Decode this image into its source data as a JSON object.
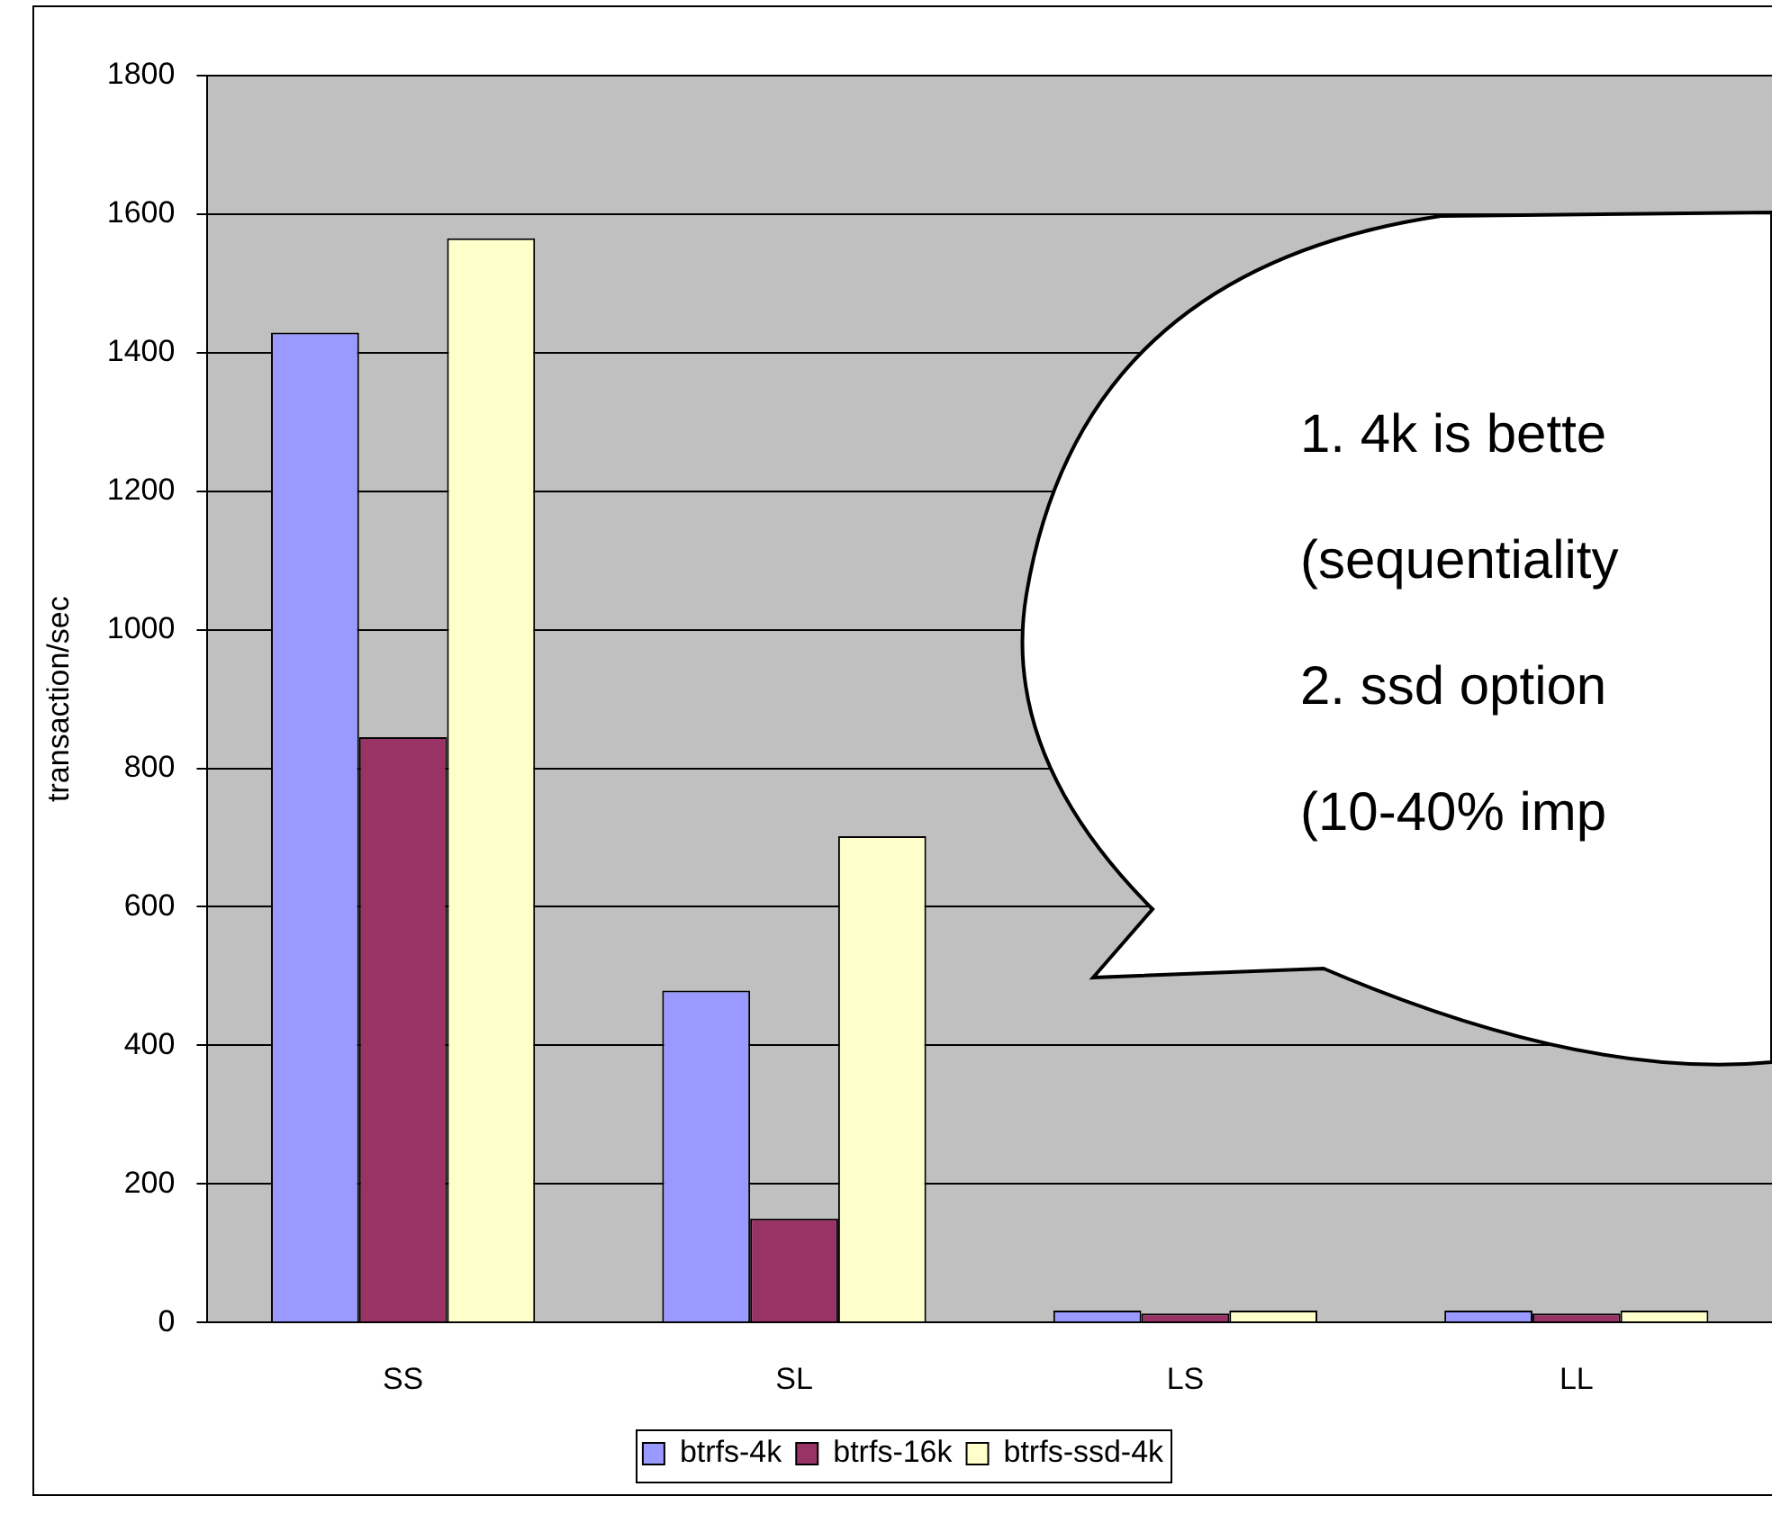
{
  "chart_data": {
    "type": "bar",
    "ylabel": "transaction/sec",
    "categories": [
      "SS",
      "SL",
      "LS",
      "LL"
    ],
    "series": [
      {
        "name": "btrfs-4k",
        "color": "#9999ff",
        "values": [
          1429,
          479,
          17,
          17
        ]
      },
      {
        "name": "btrfs-16k",
        "color": "#993366",
        "values": [
          845,
          150,
          13,
          13
        ]
      },
      {
        "name": "btrfs-ssd-4k",
        "color": "#ffffcc",
        "values": [
          1565,
          702,
          17,
          17
        ]
      }
    ],
    "ylim": [
      0,
      1800
    ],
    "yticks": [
      0,
      200,
      400,
      600,
      800,
      1000,
      1200,
      1400,
      1600,
      1800
    ],
    "grid": "y",
    "legend": "bottom",
    "annotations": [
      "1. 4k is bette",
      "(sequentiality",
      "2. ssd option",
      "(10-40% imp"
    ]
  }
}
